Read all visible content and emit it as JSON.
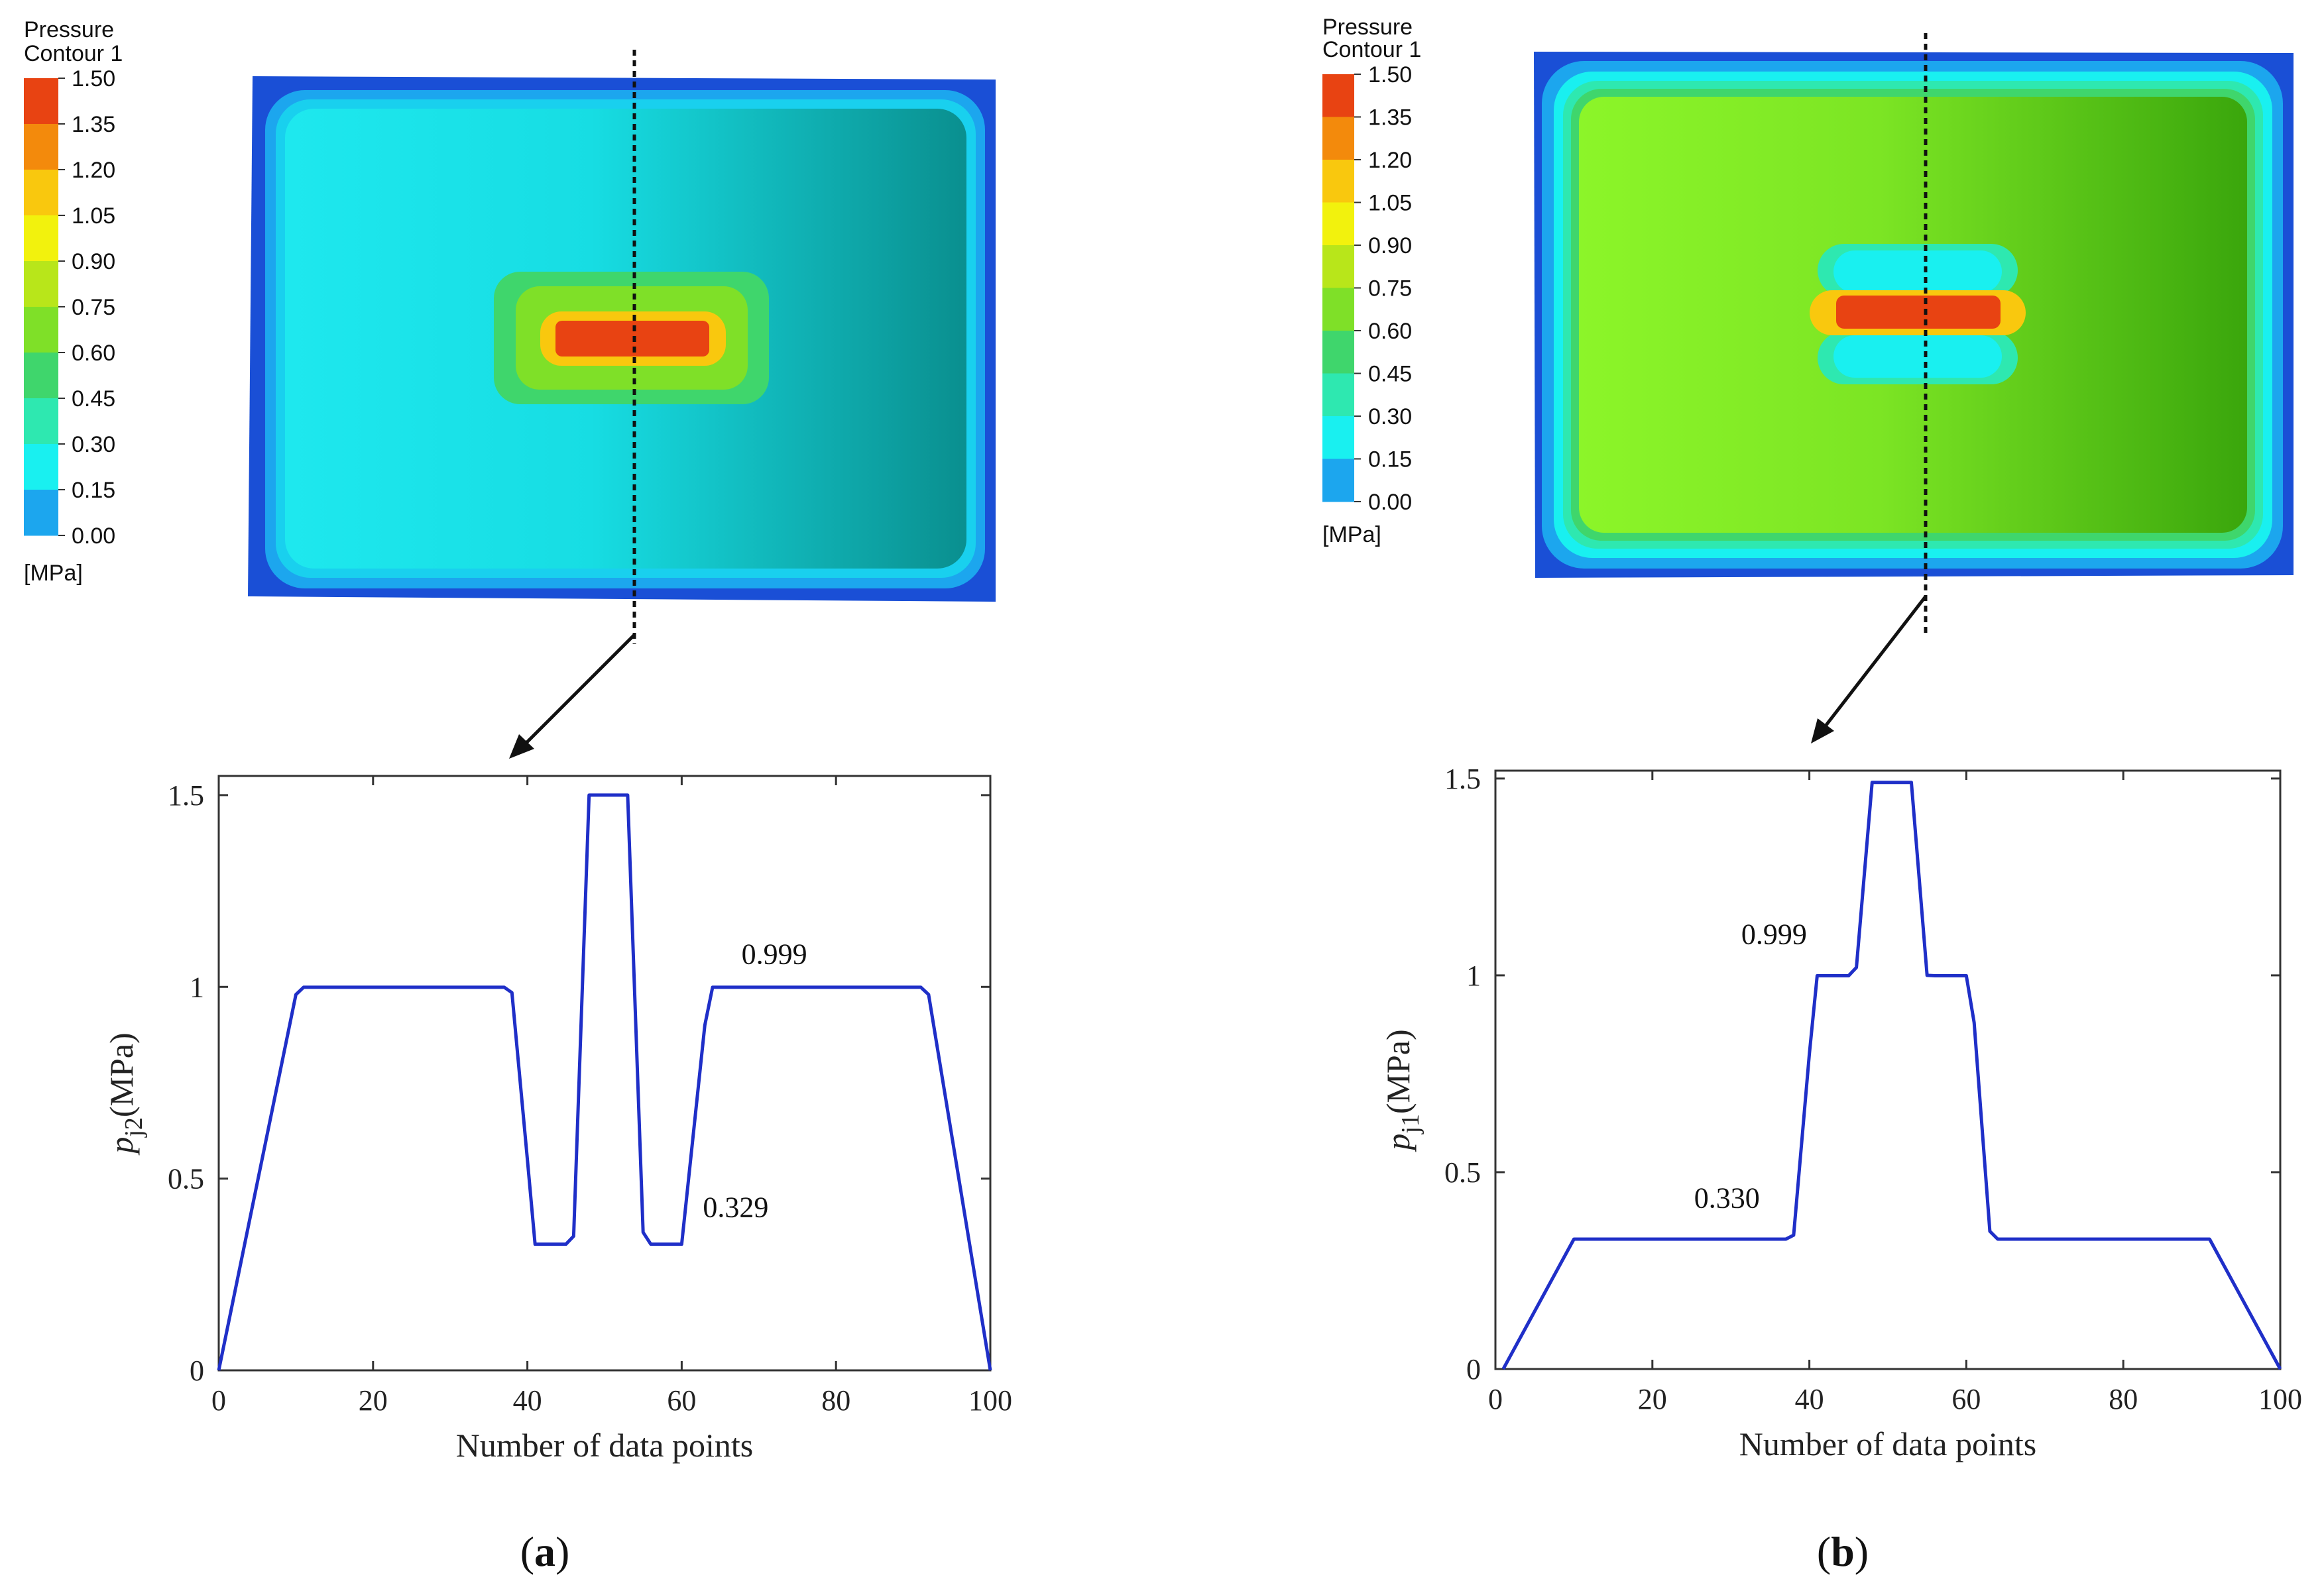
{
  "panels": [
    {
      "id": "a",
      "caption_open": "(",
      "caption_letter": "a",
      "caption_close": ")",
      "legend": {
        "title_line1": "Pressure",
        "title_line2": "Contour 1",
        "unit": "[MPa]",
        "ticks": [
          "1.50",
          "1.35",
          "1.20",
          "1.05",
          "0.90",
          "0.75",
          "0.60",
          "0.45",
          "0.30",
          "0.15",
          "0.00"
        ],
        "colors": [
          "#e84312",
          "#f38a0c",
          "#f9c80e",
          "#f2f20d",
          "#b8e61a",
          "#7fe028",
          "#3fd66c",
          "#2ee8b0",
          "#19f0f0",
          "#1ca6ee",
          "#1a49e6"
        ]
      },
      "contour": {
        "frame_color": "#1a4fd6",
        "body_left_color": "#1ee8ee",
        "body_right_color": "#0a8f8f",
        "border_ring_color": "#1cb8ee",
        "center_hot_color": "#e84312",
        "center_ring_colors": [
          "#f9c80e",
          "#7fe028",
          "#3fd66c"
        ]
      }
    },
    {
      "id": "b",
      "caption_open": "(",
      "caption_letter": "b",
      "caption_close": ")",
      "legend": {
        "title_line1": "Pressure",
        "title_line2": "Contour 1",
        "unit": "[MPa]",
        "ticks": [
          "1.50",
          "1.35",
          "1.20",
          "1.05",
          "0.90",
          "0.75",
          "0.60",
          "0.45",
          "0.30",
          "0.15",
          "0.00"
        ],
        "colors": [
          "#e84312",
          "#f38a0c",
          "#f9c80e",
          "#f2f20d",
          "#b8e61a",
          "#7fe028",
          "#3fd66c",
          "#2ee8b0",
          "#19f0f0",
          "#1ca6ee",
          "#1a49e6"
        ]
      },
      "contour": {
        "frame_color": "#1a4fd6",
        "body_left_color": "#8cf529",
        "body_right_color": "#3aa60c",
        "border_ring_color": "#2ee8b0",
        "center_hot_color": "#e84312",
        "center_ring_colors": [
          "#f9c80e",
          "#19f0f0"
        ]
      }
    }
  ],
  "chart_data": [
    {
      "type": "line",
      "panel": "a",
      "title": "",
      "xlabel": "Number of data points",
      "ylabel_main": "p",
      "ylabel_sub": "j2",
      "ylabel_unit": "(MPa)",
      "xlim": [
        0,
        100
      ],
      "ylim": [
        0,
        1.55
      ],
      "xticks": [
        0,
        20,
        40,
        60,
        80,
        100
      ],
      "xtick_labels": [
        "0",
        "20",
        "40",
        "60",
        "80",
        "100"
      ],
      "yticks": [
        0,
        0.5,
        1,
        1.5
      ],
      "ytick_labels": [
        "0",
        "0.5",
        "1",
        "1.5"
      ],
      "grid": false,
      "line_color": "#1f2fc8",
      "series": [
        {
          "name": "p_j2",
          "x": [
            0,
            10,
            11,
            37,
            38,
            40,
            41,
            45,
            46,
            48,
            53,
            55,
            56,
            60,
            63,
            64,
            91,
            92,
            100
          ],
          "y": [
            0,
            0.98,
            0.999,
            0.999,
            0.985,
            0.55,
            0.329,
            0.329,
            0.35,
            1.5,
            1.5,
            0.36,
            0.329,
            0.329,
            0.9,
            0.999,
            0.999,
            0.98,
            0
          ]
        }
      ],
      "annotations": [
        {
          "text": "0.999",
          "x": 72,
          "y": 1.06
        },
        {
          "text": "0.329",
          "x": 67,
          "y": 0.4
        }
      ]
    },
    {
      "type": "line",
      "panel": "b",
      "title": "",
      "xlabel": "Number of data points",
      "ylabel_main": "p",
      "ylabel_sub": "j1",
      "ylabel_unit": "(MPa)",
      "xlim": [
        0,
        100
      ],
      "ylim": [
        0,
        1.52
      ],
      "xticks": [
        0,
        20,
        40,
        60,
        80,
        100
      ],
      "xtick_labels": [
        "0",
        "20",
        "40",
        "60",
        "80",
        "100"
      ],
      "yticks": [
        0,
        0.5,
        1,
        1.5
      ],
      "ytick_labels": [
        "0",
        "0.5",
        "1",
        "1.5"
      ],
      "grid": false,
      "line_color": "#1f2fc8",
      "series": [
        {
          "name": "p_j1",
          "x": [
            1,
            10,
            37,
            38,
            40,
            41,
            45,
            46,
            48,
            53,
            55,
            56,
            59,
            60,
            61,
            63,
            64,
            91,
            100
          ],
          "y": [
            0,
            0.33,
            0.33,
            0.34,
            0.8,
            0.999,
            0.999,
            1.02,
            1.49,
            1.49,
            1.0,
            0.999,
            0.999,
            0.999,
            0.88,
            0.35,
            0.33,
            0.33,
            0
          ]
        }
      ],
      "annotations": [
        {
          "text": "0.999",
          "x": 35.5,
          "y": 1.08
        },
        {
          "text": "0.330",
          "x": 29.5,
          "y": 0.41
        }
      ]
    }
  ]
}
